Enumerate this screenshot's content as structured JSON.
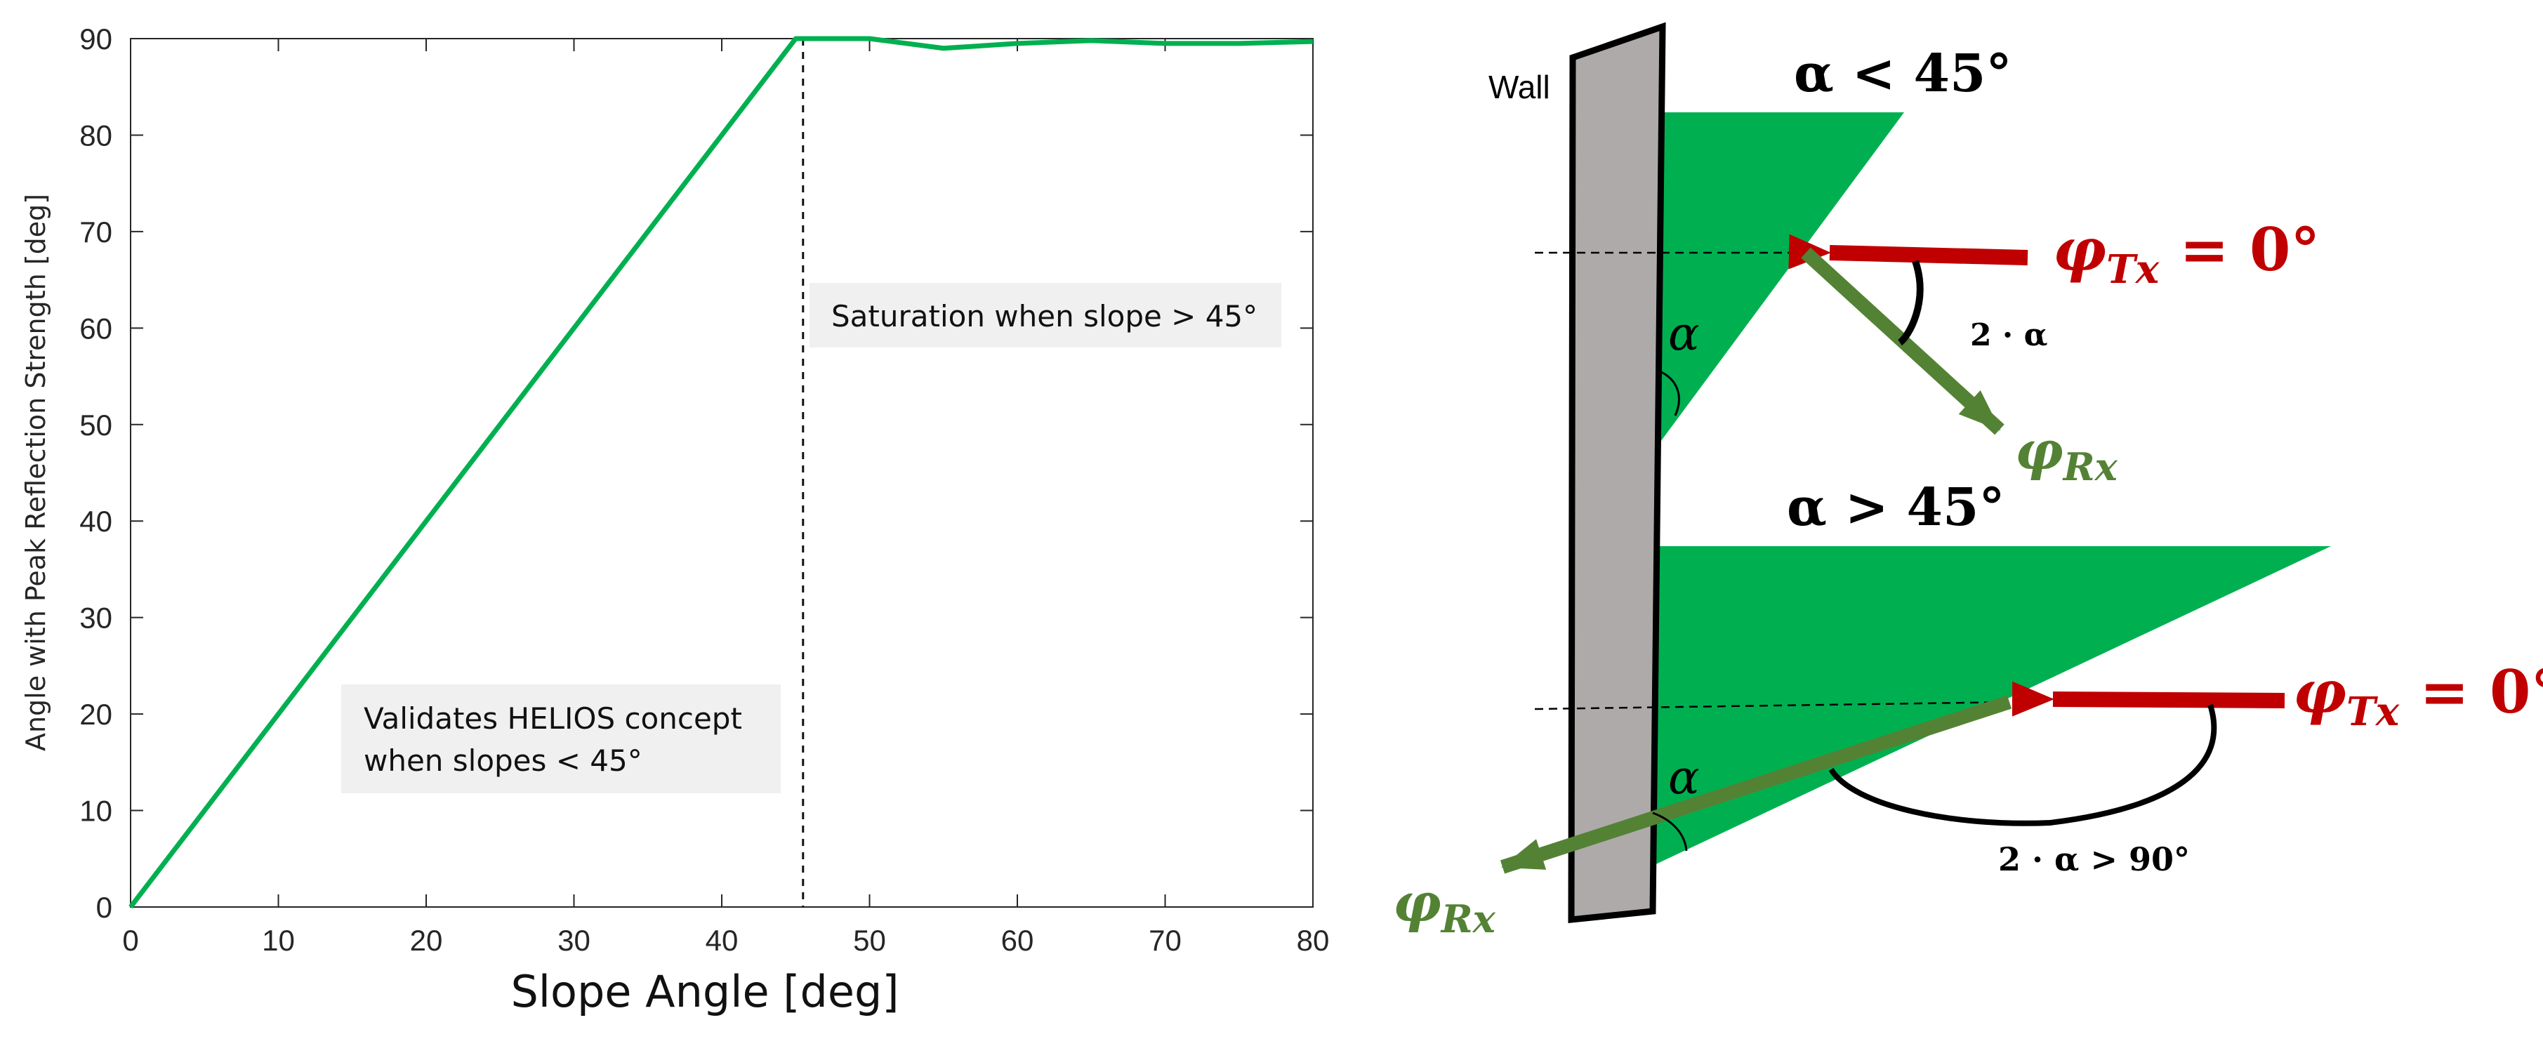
{
  "chart_data": {
    "type": "line",
    "xlabel": "Slope Angle [deg]",
    "ylabel": "Angle with Peak Reflection Strength [deg]",
    "xlim": [
      0,
      80
    ],
    "ylim": [
      0,
      90
    ],
    "xticks": [
      "0",
      "10",
      "20",
      "30",
      "40",
      "50",
      "60",
      "70",
      "80"
    ],
    "yticks": [
      "0",
      "10",
      "20",
      "30",
      "40",
      "50",
      "60",
      "70",
      "80",
      "90"
    ],
    "grid": false,
    "series": [
      {
        "x": [
          0,
          45,
          50,
          55,
          60,
          65,
          70,
          75,
          80
        ],
        "y": [
          0,
          90,
          90,
          89,
          89.5,
          89.8,
          89.5,
          89.5,
          89.7
        ]
      }
    ],
    "vline_x": 45.5,
    "annotations": {
      "left": [
        "Validates HELIOS concept",
        "when slopes < 45°"
      ],
      "right": "Saturation when slope > 45°"
    }
  },
  "diagram": {
    "wall_label": "Wall",
    "top_case": "α < 45°",
    "bottom_case": "α > 45°",
    "alpha": "α",
    "tx_label": "φ",
    "tx_sub": "Tx",
    "tx_value": " = 0°",
    "rx_label": "φ",
    "rx_sub": "Rx",
    "top_angle": "2 · α",
    "bottom_angle": "2 · α > 90°",
    "colors": {
      "incident": "#c00000",
      "reflected": "#548235",
      "surface": "#00b050",
      "wall": "#aeaaaa"
    }
  }
}
